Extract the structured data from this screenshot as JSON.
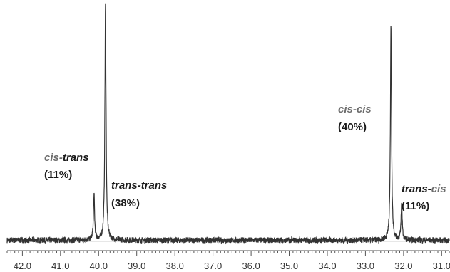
{
  "chart_data": {
    "type": "line",
    "title": "",
    "xlabel": "",
    "ylabel": "",
    "x_reversed": true,
    "xlim": [
      42.4,
      30.8
    ],
    "ylim": [
      0,
      100
    ],
    "grid": false,
    "x_ticks": [
      "42.0",
      "41.0",
      "40.0",
      "39.0",
      "38.0",
      "37.0",
      "36.0",
      "35.0",
      "34.0",
      "33.0",
      "32.0",
      "31.0"
    ],
    "series": [
      {
        "line_color": "#333333",
        "peaks": [
          {
            "x": 40.12,
            "height": 19
          },
          {
            "x": 39.82,
            "height": 99
          },
          {
            "x": 32.33,
            "height": 90
          },
          {
            "x": 32.05,
            "height": 15
          }
        ],
        "baseline": 2
      }
    ],
    "annotations": [
      {
        "isomer_a": "cis",
        "sep": "-",
        "isomer_b": "trans",
        "percent": "(11%)",
        "a_color": "#6d6d6d",
        "b_color": "#1a1a1a"
      },
      {
        "isomer_a": "trans",
        "sep": "-",
        "isomer_b": "trans",
        "percent": "(38%)",
        "a_color": "#1a1a1a",
        "b_color": "#1a1a1a"
      },
      {
        "isomer_a": "cis",
        "sep": "-",
        "isomer_b": "cis",
        "percent": "(40%)",
        "a_color": "#6d6d6d",
        "b_color": "#6d6d6d"
      },
      {
        "isomer_a": "trans",
        "sep": "-",
        "isomer_b": "cis",
        "percent": "(11%)",
        "a_color": "#1a1a1a",
        "b_color": "#6d6d6d"
      }
    ]
  }
}
